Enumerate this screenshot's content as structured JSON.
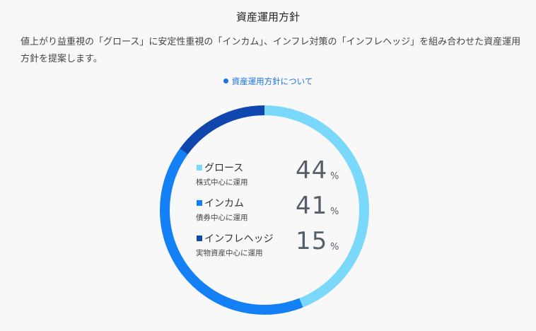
{
  "header": {
    "title": "資産運用方針",
    "description": "値上がり益重視の「グロース」に安定性重視の「インカム」、インフレ対策の「インフレヘッジ」を組み合わせた資産運用方針を提案します。",
    "link_label": "資産運用方針について"
  },
  "allocation": [
    {
      "name": "グロース",
      "desc": "株式中心に運用",
      "value": "44",
      "unit": "%",
      "color": "#7ad9fb"
    },
    {
      "name": "インカム",
      "desc": "債券中心に運用",
      "value": "41",
      "unit": "%",
      "color": "#1480f5"
    },
    {
      "name": "インフレヘッジ",
      "desc": "実物資産中心に運用",
      "value": "15",
      "unit": "%",
      "color": "#0f47ae"
    }
  ]
}
